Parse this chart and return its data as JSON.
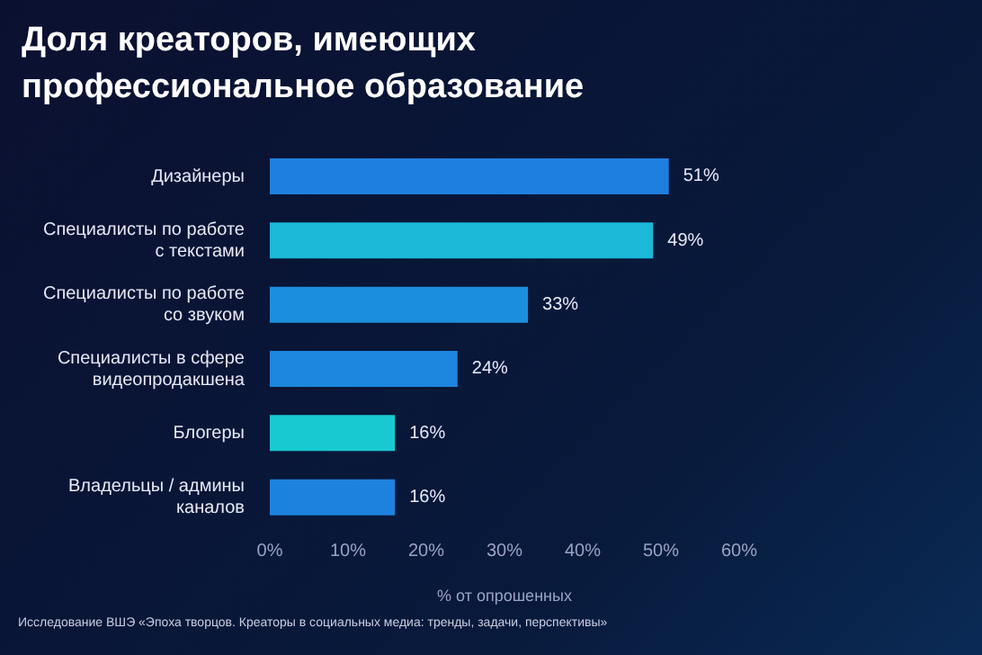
{
  "chart_data": {
    "type": "bar",
    "orientation": "horizontal",
    "title": "Доля креаторов, имеющих профессиональное образование",
    "categories": [
      "Дизайнеры",
      "Специалисты по работе с текстами",
      "Специалисты по работе со звуком",
      "Специалисты в сфере видеопродакшена",
      "Блогеры",
      "Владельцы / админы каналов"
    ],
    "values": [
      51,
      49,
      33,
      24,
      16,
      16
    ],
    "value_labels": [
      "51%",
      "49%",
      "33%",
      "24%",
      "16%",
      "16%"
    ],
    "colors": [
      "#1f7fe0",
      "#1bb8d8",
      "#1c8fdc",
      "#1d86de",
      "#19c9d2",
      "#1d82de"
    ],
    "xlim": [
      0,
      60
    ],
    "xticks": [
      {
        "value": 0,
        "label": "0%"
      },
      {
        "value": 10,
        "label": "10%"
      },
      {
        "value": 20,
        "label": "20%"
      },
      {
        "value": 30,
        "label": "30%"
      },
      {
        "value": 40,
        "label": "40%"
      },
      {
        "value": 50,
        "label": "50%"
      },
      {
        "value": 60,
        "label": "60%"
      }
    ],
    "xlabel": "% от опрошенных",
    "grid": false,
    "legend": false,
    "annotations": [
      "Исследование ВШЭ «Эпоха творцов. Креаторы в социальных медиа: тренды, задачи, перспективы»"
    ]
  }
}
